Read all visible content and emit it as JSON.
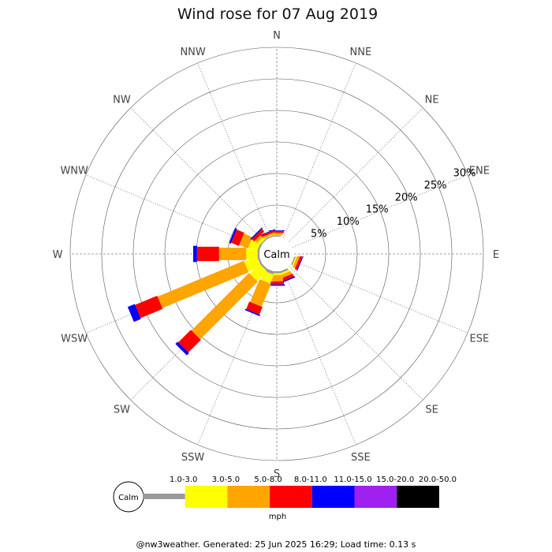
{
  "chart_data": {
    "type": "wind-rose",
    "title": "Wind rose for 07 Aug 2019",
    "directions": [
      "N",
      "NNE",
      "NE",
      "ENE",
      "E",
      "ESE",
      "SE",
      "SSE",
      "S",
      "SSW",
      "SW",
      "WSW",
      "W",
      "WNW",
      "NW",
      "NNW"
    ],
    "ring_labels": [
      "5%",
      "10%",
      "15%",
      "20%",
      "25%",
      "30%"
    ],
    "ring_values": [
      5,
      10,
      15,
      20,
      25,
      30
    ],
    "calm_label": "Calm",
    "unit": "mph",
    "speed_bins": [
      {
        "label": "1.0-3.0",
        "color": "#999999"
      },
      {
        "label": "3.0-5.0",
        "color": "#ffff00"
      },
      {
        "label": "5.0-8.0",
        "color": "#ffa500"
      },
      {
        "label": "8.0-11.0",
        "color": "#ff0000"
      },
      {
        "label": "11.0-15.0",
        "color": "#0000ff"
      },
      {
        "label": "15.0-20.0",
        "color": "#a020f0"
      },
      {
        "label": "20.0-50.0",
        "color": "#000000"
      }
    ],
    "frequencies_percent": {
      "N": [
        0.2,
        0.1,
        0.3,
        0.3,
        0.1,
        0,
        0
      ],
      "NNE": [
        0,
        0,
        0,
        0,
        0,
        0,
        0
      ],
      "NE": [
        0,
        0,
        0,
        0,
        0,
        0,
        0
      ],
      "ENE": [
        0,
        0,
        0,
        0,
        0,
        0,
        0
      ],
      "E": [
        0,
        0,
        0,
        0,
        0,
        0,
        0
      ],
      "ESE": [
        0.2,
        0.2,
        0.4,
        0.4,
        0.1,
        0,
        0
      ],
      "SE": [
        0,
        0,
        0,
        0,
        0,
        0,
        0
      ],
      "SSE": [
        0.3,
        0.3,
        0.5,
        0.5,
        0.2,
        0,
        0
      ],
      "S": [
        0.3,
        0.3,
        1.0,
        0.5,
        0.2,
        0,
        0
      ],
      "SSW": [
        0.5,
        1.5,
        3.9,
        1.3,
        0.2,
        0,
        0
      ],
      "SW": [
        0.3,
        2.2,
        12.9,
        2.8,
        0.5,
        0,
        0
      ],
      "WSW": [
        0.3,
        2.2,
        14.8,
        3.8,
        1.2,
        0,
        0
      ],
      "W": [
        0.3,
        1.8,
        4.3,
        3.5,
        0.6,
        0,
        0
      ],
      "WNW": [
        0.3,
        1.5,
        1.5,
        1.3,
        0.3,
        0,
        0
      ],
      "NW": [
        0.2,
        0.5,
        0.5,
        0.5,
        0.2,
        0,
        0
      ],
      "NNW": [
        0.2,
        0.1,
        0.3,
        0.3,
        0.1,
        0,
        0
      ]
    }
  },
  "footer": "@nw3weather. Generated: 25 Jun 2025 16:29; Load time: 0.13 s"
}
